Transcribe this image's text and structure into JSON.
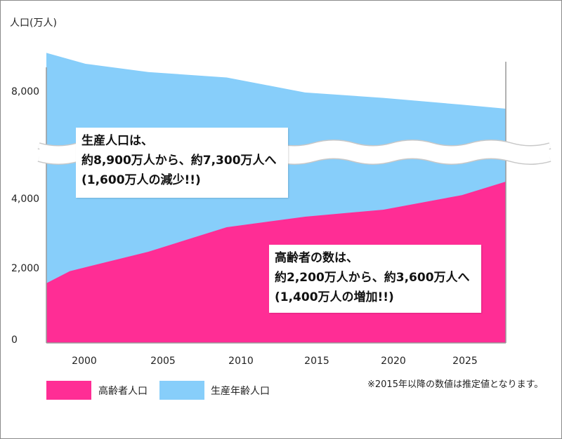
{
  "colors": {
    "elderly": "#ff2d95",
    "working": "#87cefa",
    "axis": "#999999",
    "break_stroke": "#c8c8c8"
  },
  "chart_data": {
    "type": "area",
    "stacked": false,
    "ylabel": "人口(万人)",
    "y_ticks": [
      "0",
      "2,000",
      "4,000",
      "8,000"
    ],
    "y_axis_break": true,
    "x_ticks": [
      "2000",
      "2005",
      "2010",
      "2015",
      "2020",
      "2025"
    ],
    "x_range": [
      1998.5,
      2027.8
    ],
    "series": [
      {
        "name": "生産年齢人口",
        "x": [
          1998.5,
          2001,
          2005,
          2010,
          2015,
          2020,
          2025,
          2027.8
        ],
        "values": [
          8700,
          8500,
          8350,
          8250,
          7950,
          7750,
          7500,
          7350
        ]
      },
      {
        "name": "高齢者人口",
        "x": [
          1998.5,
          2000,
          2005,
          2010,
          2015,
          2020,
          2025,
          2027.8
        ],
        "values": [
          1620,
          1950,
          2500,
          3200,
          3500,
          3700,
          4150,
          4650
        ]
      }
    ],
    "annotations": [
      {
        "lines": [
          "生産人口は、",
          "約8,900万人から、約7,300万人へ",
          "(1,600万人の減少!!)"
        ]
      },
      {
        "lines": [
          "高齢者の数は、",
          "約2,200万人から、約3,600万人へ",
          "(1,400万人の増加!!)"
        ]
      }
    ],
    "legend": [
      {
        "label": "高齢者人口",
        "color": "#ff2d95"
      },
      {
        "label": "生産年齢人口",
        "color": "#87cefa"
      }
    ],
    "note": "※2015年以降の数値は推定値となります。"
  }
}
